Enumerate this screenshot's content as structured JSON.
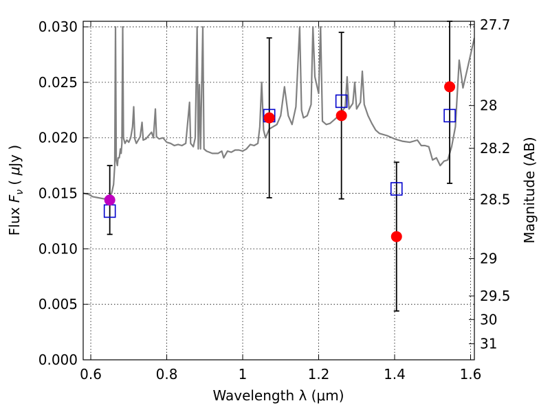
{
  "chart_data": {
    "type": "scatter",
    "xlabel": "Wavelength  λ (μm)",
    "ylabel": "Flux  F_ν  ( μJy )",
    "ylabel_parts": [
      "Flux  ",
      "F",
      "ν",
      "  ( ",
      "μ",
      "Jy )"
    ],
    "y2label": "Magnitude (AB)",
    "xlim": [
      0.58,
      1.61
    ],
    "ylim": [
      0.0,
      0.0305
    ],
    "grid": true,
    "x_ticks": [
      {
        "value": 0.6,
        "label": "0.6"
      },
      {
        "value": 0.8,
        "label": "0.8"
      },
      {
        "value": 1.0,
        "label": "1"
      },
      {
        "value": 1.2,
        "label": "1.2"
      },
      {
        "value": 1.4,
        "label": "1.4"
      },
      {
        "value": 1.6,
        "label": "1.6"
      }
    ],
    "y_ticks": [
      {
        "value": 0.0,
        "label": "0.000"
      },
      {
        "value": 0.005,
        "label": "0.005"
      },
      {
        "value": 0.01,
        "label": "0.010"
      },
      {
        "value": 0.015,
        "label": "0.015"
      },
      {
        "value": 0.02,
        "label": "0.020"
      },
      {
        "value": 0.025,
        "label": "0.025"
      },
      {
        "value": 0.03,
        "label": "0.030"
      }
    ],
    "y2_ticks": [
      {
        "mag": 27.7,
        "label": "27.7"
      },
      {
        "mag": 28,
        "label": "28"
      },
      {
        "mag": 28.2,
        "label": "28.2"
      },
      {
        "mag": 28.5,
        "label": "28.5"
      },
      {
        "mag": 29,
        "label": "29"
      },
      {
        "mag": 29.5,
        "label": "29.5"
      },
      {
        "mag": 30,
        "label": "30"
      },
      {
        "mag": 31,
        "label": "31"
      }
    ],
    "observed": [
      {
        "x": 0.65,
        "y": 0.0144,
        "err_low": 0.0113,
        "err_high": 0.0175,
        "color": "#bf00bf"
      },
      {
        "x": 1.07,
        "y": 0.0218,
        "err_low": 0.0146,
        "err_high": 0.029,
        "color": "#ff0000"
      },
      {
        "x": 1.26,
        "y": 0.022,
        "err_low": 0.0145,
        "err_high": 0.0295,
        "color": "#ff0000"
      },
      {
        "x": 1.405,
        "y": 0.0111,
        "err_low": 0.0044,
        "err_high": 0.0178,
        "color": "#ff0000"
      },
      {
        "x": 1.545,
        "y": 0.0246,
        "err_low": 0.0159,
        "err_high": 0.0305,
        "color": "#ff0000"
      }
    ],
    "model_photometry": {
      "color": "#0000cc",
      "points": [
        {
          "x": 0.65,
          "y": 0.0134
        },
        {
          "x": 1.07,
          "y": 0.022
        },
        {
          "x": 1.26,
          "y": 0.0233
        },
        {
          "x": 1.405,
          "y": 0.0154
        },
        {
          "x": 1.545,
          "y": 0.022
        }
      ]
    },
    "model_spectrum": {
      "color": "#808080",
      "points": [
        [
          0.58,
          0.015
        ],
        [
          0.595,
          0.0149
        ],
        [
          0.605,
          0.0147
        ],
        [
          0.62,
          0.0146
        ],
        [
          0.635,
          0.0145
        ],
        [
          0.645,
          0.0146
        ],
        [
          0.655,
          0.015
        ],
        [
          0.66,
          0.0158
        ],
        [
          0.663,
          0.0175
        ],
        [
          0.665,
          0.03
        ],
        [
          0.667,
          0.018
        ],
        [
          0.67,
          0.0175
        ],
        [
          0.672,
          0.0182
        ],
        [
          0.675,
          0.0182
        ],
        [
          0.678,
          0.019
        ],
        [
          0.68,
          0.0186
        ],
        [
          0.682,
          0.0195
        ],
        [
          0.684,
          0.03
        ],
        [
          0.686,
          0.02
        ],
        [
          0.69,
          0.0195
        ],
        [
          0.695,
          0.0198
        ],
        [
          0.7,
          0.0196
        ],
        [
          0.705,
          0.02
        ],
        [
          0.71,
          0.021
        ],
        [
          0.713,
          0.0228
        ],
        [
          0.716,
          0.0199
        ],
        [
          0.72,
          0.0195
        ],
        [
          0.73,
          0.0201
        ],
        [
          0.735,
          0.0214
        ],
        [
          0.738,
          0.0198
        ],
        [
          0.745,
          0.0199
        ],
        [
          0.75,
          0.0201
        ],
        [
          0.76,
          0.0205
        ],
        [
          0.765,
          0.02
        ],
        [
          0.77,
          0.0226
        ],
        [
          0.773,
          0.0201
        ],
        [
          0.78,
          0.0199
        ],
        [
          0.79,
          0.02
        ],
        [
          0.8,
          0.0196
        ],
        [
          0.81,
          0.0195
        ],
        [
          0.82,
          0.0193
        ],
        [
          0.83,
          0.0194
        ],
        [
          0.84,
          0.0193
        ],
        [
          0.85,
          0.0195
        ],
        [
          0.86,
          0.0232
        ],
        [
          0.863,
          0.0195
        ],
        [
          0.87,
          0.0192
        ],
        [
          0.875,
          0.02
        ],
        [
          0.88,
          0.03
        ],
        [
          0.883,
          0.019
        ],
        [
          0.886,
          0.0248
        ],
        [
          0.889,
          0.019
        ],
        [
          0.895,
          0.03
        ],
        [
          0.898,
          0.019
        ],
        [
          0.905,
          0.0188
        ],
        [
          0.92,
          0.0186
        ],
        [
          0.935,
          0.0186
        ],
        [
          0.945,
          0.0188
        ],
        [
          0.95,
          0.0182
        ],
        [
          0.96,
          0.0188
        ],
        [
          0.97,
          0.0187
        ],
        [
          0.98,
          0.0189
        ],
        [
          0.99,
          0.0189
        ],
        [
          1.0,
          0.0188
        ],
        [
          1.01,
          0.019
        ],
        [
          1.02,
          0.0194
        ],
        [
          1.03,
          0.0193
        ],
        [
          1.04,
          0.0195
        ],
        [
          1.045,
          0.021
        ],
        [
          1.05,
          0.025
        ],
        [
          1.055,
          0.0207
        ],
        [
          1.06,
          0.02
        ],
        [
          1.07,
          0.0208
        ],
        [
          1.08,
          0.021
        ],
        [
          1.09,
          0.0212
        ],
        [
          1.1,
          0.022
        ],
        [
          1.11,
          0.0246
        ],
        [
          1.12,
          0.022
        ],
        [
          1.13,
          0.0212
        ],
        [
          1.14,
          0.0228
        ],
        [
          1.15,
          0.03
        ],
        [
          1.155,
          0.0225
        ],
        [
          1.16,
          0.0218
        ],
        [
          1.17,
          0.022
        ],
        [
          1.18,
          0.023
        ],
        [
          1.185,
          0.03
        ],
        [
          1.19,
          0.0255
        ],
        [
          1.2,
          0.024
        ],
        [
          1.205,
          0.03
        ],
        [
          1.21,
          0.0215
        ],
        [
          1.22,
          0.0212
        ],
        [
          1.23,
          0.0213
        ],
        [
          1.24,
          0.0216
        ],
        [
          1.25,
          0.0219
        ],
        [
          1.26,
          0.0223
        ],
        [
          1.27,
          0.0228
        ],
        [
          1.275,
          0.0255
        ],
        [
          1.28,
          0.0226
        ],
        [
          1.29,
          0.0231
        ],
        [
          1.295,
          0.025
        ],
        [
          1.3,
          0.0226
        ],
        [
          1.31,
          0.0232
        ],
        [
          1.315,
          0.026
        ],
        [
          1.32,
          0.023
        ],
        [
          1.33,
          0.022
        ],
        [
          1.34,
          0.0213
        ],
        [
          1.35,
          0.0207
        ],
        [
          1.36,
          0.0204
        ],
        [
          1.38,
          0.0202
        ],
        [
          1.4,
          0.0199
        ],
        [
          1.42,
          0.0197
        ],
        [
          1.44,
          0.0196
        ],
        [
          1.46,
          0.0198
        ],
        [
          1.47,
          0.0193
        ],
        [
          1.48,
          0.0193
        ],
        [
          1.49,
          0.0192
        ],
        [
          1.5,
          0.018
        ],
        [
          1.51,
          0.0182
        ],
        [
          1.52,
          0.0175
        ],
        [
          1.53,
          0.0179
        ],
        [
          1.54,
          0.018
        ],
        [
          1.55,
          0.0192
        ],
        [
          1.56,
          0.021
        ],
        [
          1.57,
          0.027
        ],
        [
          1.58,
          0.0245
        ],
        [
          1.59,
          0.026
        ],
        [
          1.6,
          0.0275
        ],
        [
          1.61,
          0.029
        ]
      ]
    }
  }
}
